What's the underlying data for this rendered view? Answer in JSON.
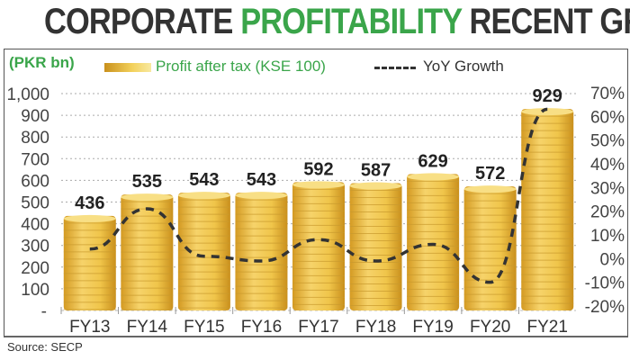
{
  "title": {
    "part1": "CORPORATE",
    "part2": "PROFITABILITY",
    "part3": "RECENT GROWTH"
  },
  "source": "Source: SECP",
  "colors": {
    "title_dark": "#333333",
    "title_accent": "#3aa54a",
    "coin_gold": "#e8b83a",
    "line": "#333333"
  },
  "chart_data": {
    "type": "bar",
    "title": "CORPORATE PROFITABILITY RECENT GROWTH",
    "ylabel": "(PKR bn)",
    "categories": [
      "FY13",
      "FY14",
      "FY15",
      "FY16",
      "FY17",
      "FY18",
      "FY19",
      "FY20",
      "FY21"
    ],
    "series": [
      {
        "name": "Profit after tax (KSE 100)",
        "type": "bar",
        "axis": "left",
        "values": [
          436,
          535,
          543,
          543,
          592,
          587,
          629,
          572,
          929
        ]
      },
      {
        "name": "YoY Growth",
        "type": "line",
        "style": "dashed",
        "axis": "right",
        "values": [
          4,
          21,
          1,
          -1,
          8,
          -1,
          6,
          -10,
          63
        ]
      }
    ],
    "y_left": {
      "range": [
        0,
        1000
      ],
      "ticks": [
        "-",
        "100",
        "200",
        "300",
        "400",
        "500",
        "600",
        "700",
        "800",
        "900",
        "1,000"
      ]
    },
    "y_right": {
      "range": [
        -20,
        70
      ],
      "ticks": [
        "-20%",
        "-10%",
        "0%",
        "10%",
        "20%",
        "30%",
        "40%",
        "50%",
        "60%",
        "70%"
      ]
    },
    "grid": "horizontal dotted",
    "legend": "top"
  }
}
